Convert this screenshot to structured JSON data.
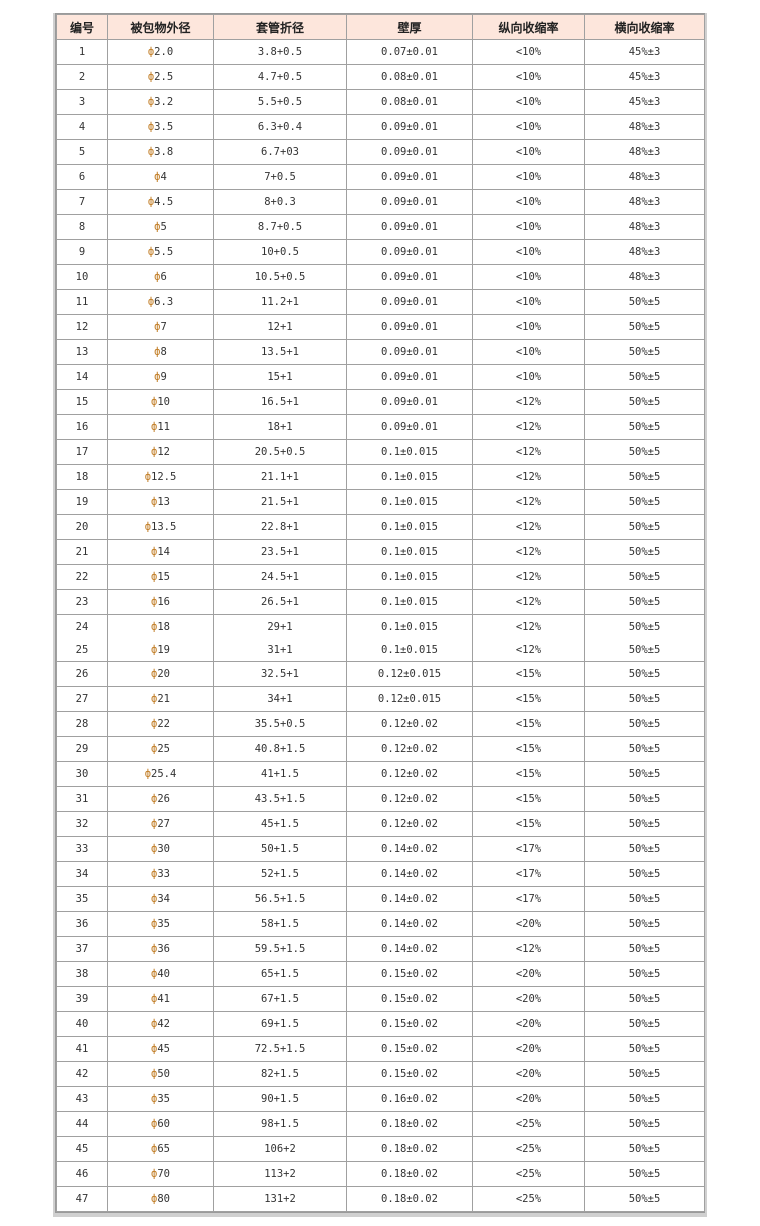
{
  "table": {
    "headers": [
      "编号",
      "被包物外径",
      "套管折径",
      "壁厚",
      "纵向收缩率",
      "横向收缩率"
    ],
    "phi_symbol": "ф",
    "rows": [
      [
        "1",
        "2.0",
        "3.8+0.5",
        "0.07±0.01",
        "<10%",
        "45%±3"
      ],
      [
        "2",
        "2.5",
        "4.7+0.5",
        "0.08±0.01",
        "<10%",
        "45%±3"
      ],
      [
        "3",
        "3.2",
        "5.5+0.5",
        "0.08±0.01",
        "<10%",
        "45%±3"
      ],
      [
        "4",
        "3.5",
        "6.3+0.4",
        "0.09±0.01",
        "<10%",
        "48%±3"
      ],
      [
        "5",
        "3.8",
        "6.7+03",
        "0.09±0.01",
        "<10%",
        "48%±3"
      ],
      [
        "6",
        "4",
        "7+0.5",
        "0.09±0.01",
        "<10%",
        "48%±3"
      ],
      [
        "7",
        "4.5",
        "8+0.3",
        "0.09±0.01",
        "<10%",
        "48%±3"
      ],
      [
        "8",
        "5",
        "8.7+0.5",
        "0.09±0.01",
        "<10%",
        "48%±3"
      ],
      [
        "9",
        "5.5",
        "10+0.5",
        "0.09±0.01",
        "<10%",
        "48%±3"
      ],
      [
        "10",
        "6",
        "10.5+0.5",
        "0.09±0.01",
        "<10%",
        "48%±3"
      ],
      [
        "11",
        "6.3",
        "11.2+1",
        "0.09±0.01",
        "<10%",
        "50%±5"
      ],
      [
        "12",
        "7",
        "12+1",
        "0.09±0.01",
        "<10%",
        "50%±5"
      ],
      [
        "13",
        "8",
        "13.5+1",
        "0.09±0.01",
        "<10%",
        "50%±5"
      ],
      [
        "14",
        "9",
        "15+1",
        "0.09±0.01",
        "<10%",
        "50%±5"
      ],
      [
        "15",
        "10",
        "16.5+1",
        "0.09±0.01",
        "<12%",
        "50%±5"
      ],
      [
        "16",
        "11",
        "18+1",
        "0.09±0.01",
        "<12%",
        "50%±5"
      ],
      [
        "17",
        "12",
        "20.5+0.5",
        "0.1±0.015",
        "<12%",
        "50%±5"
      ],
      [
        "18",
        "12.5",
        "21.1+1",
        "0.1±0.015",
        "<12%",
        "50%±5"
      ],
      [
        "19",
        "13",
        "21.5+1",
        "0.1±0.015",
        "<12%",
        "50%±5"
      ],
      [
        "20",
        "13.5",
        "22.8+1",
        "0.1±0.015",
        "<12%",
        "50%±5"
      ],
      [
        "21",
        "14",
        "23.5+1",
        "0.1±0.015",
        "<12%",
        "50%±5"
      ],
      [
        "22",
        "15",
        "24.5+1",
        "0.1±0.015",
        "<12%",
        "50%±5"
      ],
      [
        "23",
        "16",
        "26.5+1",
        "0.1±0.015",
        "<12%",
        "50%±5"
      ],
      [
        "24",
        "18",
        "29+1",
        "0.1±0.015",
        "<12%",
        "50%±5"
      ],
      [
        "25",
        "19",
        "31+1",
        "0.1±0.015",
        "<12%",
        "50%±5"
      ],
      [
        "26",
        "20",
        "32.5+1",
        "0.12±0.015",
        "<15%",
        "50%±5"
      ],
      [
        "27",
        "21",
        "34+1",
        "0.12±0.015",
        "<15%",
        "50%±5"
      ],
      [
        "28",
        "22",
        "35.5+0.5",
        "0.12±0.02",
        "<15%",
        "50%±5"
      ],
      [
        "29",
        "25",
        "40.8+1.5",
        "0.12±0.02",
        "<15%",
        "50%±5"
      ],
      [
        "30",
        "25.4",
        "41+1.5",
        "0.12±0.02",
        "<15%",
        "50%±5"
      ],
      [
        "31",
        "26",
        "43.5+1.5",
        "0.12±0.02",
        "<15%",
        "50%±5"
      ],
      [
        "32",
        "27",
        "45+1.5",
        "0.12±0.02",
        "<15%",
        "50%±5"
      ],
      [
        "33",
        "30",
        "50+1.5",
        "0.14±0.02",
        "<17%",
        "50%±5"
      ],
      [
        "34",
        "33",
        "52+1.5",
        "0.14±0.02",
        "<17%",
        "50%±5"
      ],
      [
        "35",
        "34",
        "56.5+1.5",
        "0.14±0.02",
        "<17%",
        "50%±5"
      ],
      [
        "36",
        "35",
        "58+1.5",
        "0.14±0.02",
        "<20%",
        "50%±5"
      ],
      [
        "37",
        "36",
        "59.5+1.5",
        "0.14±0.02",
        "<12%",
        "50%±5"
      ],
      [
        "38",
        "40",
        "65+1.5",
        "0.15±0.02",
        "<20%",
        "50%±5"
      ],
      [
        "39",
        "41",
        "67+1.5",
        "0.15±0.02",
        "<20%",
        "50%±5"
      ],
      [
        "40",
        "42",
        "69+1.5",
        "0.15±0.02",
        "<20%",
        "50%±5"
      ],
      [
        "41",
        "45",
        "72.5+1.5",
        "0.15±0.02",
        "<20%",
        "50%±5"
      ],
      [
        "42",
        "50",
        "82+1.5",
        "0.15±0.02",
        "<20%",
        "50%±5"
      ],
      [
        "43",
        "35",
        "90+1.5",
        "0.16±0.02",
        "<20%",
        "50%±5"
      ],
      [
        "44",
        "60",
        "98+1.5",
        "0.18±0.02",
        "<25%",
        "50%±5"
      ],
      [
        "45",
        "65",
        "106+2",
        "0.18±0.02",
        "<25%",
        "50%±5"
      ],
      [
        "46",
        "70",
        "113+2",
        "0.18±0.02",
        "<25%",
        "50%±5"
      ],
      [
        "47",
        "80",
        "131+2",
        "0.18±0.02",
        "<25%",
        "50%±5"
      ]
    ]
  }
}
